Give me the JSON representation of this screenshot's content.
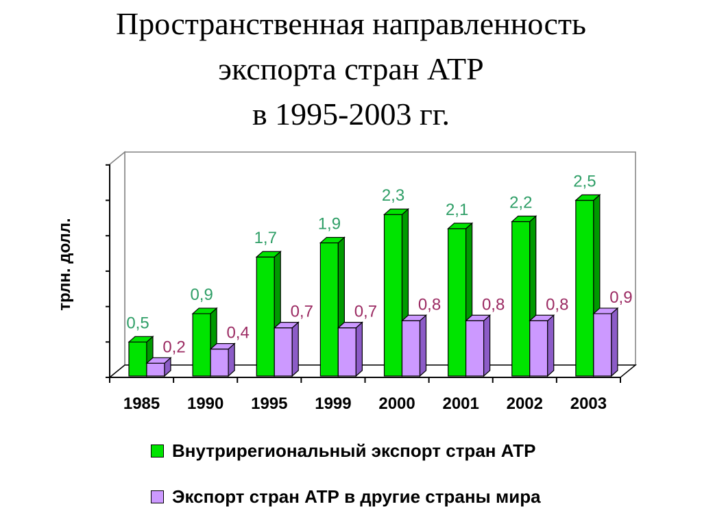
{
  "title": {
    "line1": "Пространственная направленность",
    "line2": "экспорта стран АТР",
    "line3": "в 1995-2003 гг."
  },
  "colors": {
    "series1": "#00e400",
    "series1_dark": "#009a00",
    "series1_label": "#2e9e66",
    "series2": "#cc99ff",
    "series2_dark": "#8c5cc7",
    "series2_label": "#9b2a62"
  },
  "chart_data": {
    "type": "bar",
    "ylabel": "трлн. долл.",
    "categories": [
      "1985",
      "1990",
      "1995",
      "1999",
      "2000",
      "2001",
      "2002",
      "2003"
    ],
    "series": [
      {
        "name": "Внутрирегиональный экспорт стран АТР",
        "values": [
          0.5,
          0.9,
          1.7,
          1.9,
          2.3,
          2.1,
          2.2,
          2.5
        ],
        "labels": [
          "0,5",
          "0,9",
          "1,7",
          "1,9",
          "2,3",
          "2,1",
          "2,2",
          "2,5"
        ]
      },
      {
        "name": "Экспорт стран АТР в другие страны мира",
        "values": [
          0.2,
          0.4,
          0.7,
          0.7,
          0.8,
          0.8,
          0.8,
          0.9
        ],
        "labels": [
          "0,2",
          "0,4",
          "0,7",
          "0,7",
          "0,8",
          "0,8",
          "0,8",
          "0,9"
        ]
      }
    ],
    "ylim": [
      0,
      3
    ],
    "grid": false,
    "legend_position": "bottom",
    "style": "3d-clustered-column"
  },
  "legend": {
    "item1": "Внутрирегиональный экспорт стран АТР",
    "item2": "Экспорт стран АТР в другие страны мира"
  }
}
